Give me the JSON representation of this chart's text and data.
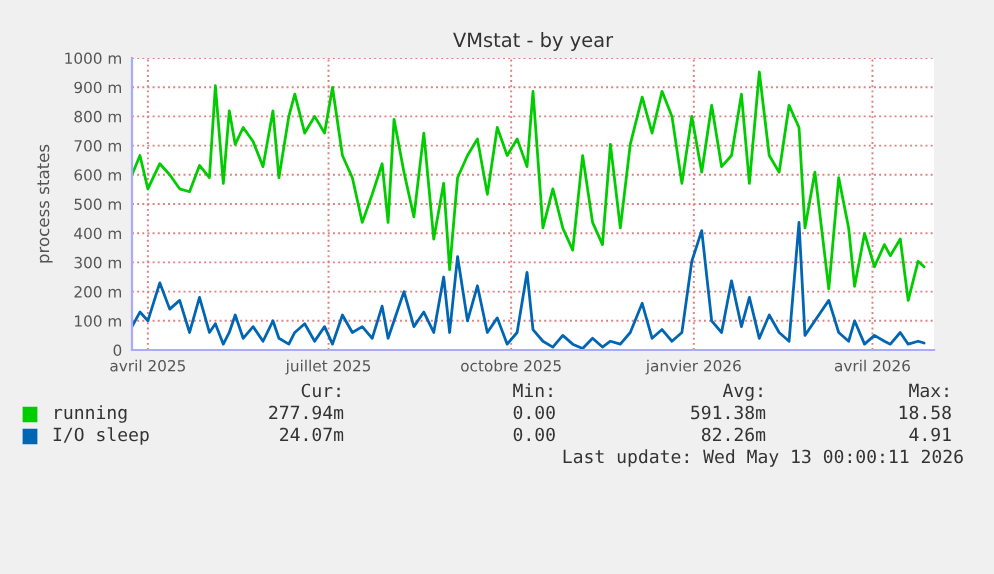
{
  "chart_data": {
    "type": "line",
    "title": "VMstat - by year",
    "ylabel": "process states",
    "x": [
      "2025-03-24",
      "2025-03-28",
      "2025-04-01",
      "2025-04-07",
      "2025-04-12",
      "2025-04-17",
      "2025-04-22",
      "2025-04-27",
      "2025-05-02",
      "2025-05-05",
      "2025-05-09",
      "2025-05-12",
      "2025-05-15",
      "2025-05-19",
      "2025-05-24",
      "2025-05-29",
      "2025-06-03",
      "2025-06-06",
      "2025-06-11",
      "2025-06-14",
      "2025-06-19",
      "2025-06-24",
      "2025-06-29",
      "2025-07-03",
      "2025-07-08",
      "2025-07-13",
      "2025-07-18",
      "2025-07-23",
      "2025-07-28",
      "2025-07-31",
      "2025-08-03",
      "2025-08-08",
      "2025-08-13",
      "2025-08-18",
      "2025-08-23",
      "2025-08-28",
      "2025-08-31",
      "2025-09-04",
      "2025-09-09",
      "2025-09-14",
      "2025-09-19",
      "2025-09-24",
      "2025-09-29",
      "2025-10-04",
      "2025-10-09",
      "2025-10-12",
      "2025-10-17",
      "2025-10-22",
      "2025-10-27",
      "2025-11-01",
      "2025-11-06",
      "2025-11-11",
      "2025-11-16",
      "2025-11-20",
      "2025-11-25",
      "2025-11-30",
      "2025-12-06",
      "2025-12-11",
      "2025-12-16",
      "2025-12-21",
      "2025-12-26",
      "2025-12-31",
      "2026-01-05",
      "2026-01-10",
      "2026-01-15",
      "2026-01-20",
      "2026-01-25",
      "2026-01-29",
      "2026-02-03",
      "2026-02-08",
      "2026-02-13",
      "2026-02-18",
      "2026-02-23",
      "2026-02-26",
      "2026-03-03",
      "2026-03-10",
      "2026-03-15",
      "2026-03-20",
      "2026-03-23",
      "2026-03-28",
      "2026-04-02",
      "2026-04-07",
      "2026-04-10",
      "2026-04-15",
      "2026-04-19",
      "2026-04-24",
      "2026-04-27"
    ],
    "series": [
      {
        "name": "running",
        "color": "#00cc00",
        "values": [
          600,
          666,
          552,
          638,
          600,
          552,
          542,
          632,
          590,
          905,
          571,
          819,
          704,
          762,
          714,
          628,
          819,
          590,
          800,
          876,
          743,
          800,
          743,
          899,
          666,
          590,
          437,
          533,
          638,
          437,
          790,
          609,
          456,
          743,
          380,
          571,
          275,
          590,
          666,
          723,
          533,
          762,
          666,
          723,
          628,
          886,
          418,
          552,
          418,
          342,
          666,
          437,
          361,
          704,
          418,
          704,
          866,
          743,
          886,
          800,
          571,
          800,
          609,
          838,
          628,
          666,
          876,
          571,
          952,
          666,
          609,
          838,
          762,
          418,
          609,
          209,
          590,
          418,
          218,
          399,
          285,
          361,
          323,
          380,
          170,
          304,
          285
        ]
      },
      {
        "name": "I/O sleep",
        "color": "#0066b3",
        "values": [
          80,
          130,
          100,
          230,
          140,
          170,
          60,
          180,
          60,
          90,
          20,
          60,
          120,
          40,
          80,
          30,
          100,
          40,
          20,
          60,
          90,
          30,
          80,
          20,
          120,
          60,
          80,
          40,
          150,
          40,
          100,
          200,
          80,
          130,
          60,
          250,
          60,
          320,
          100,
          220,
          60,
          110,
          20,
          60,
          266,
          70,
          30,
          10,
          50,
          20,
          5,
          40,
          10,
          30,
          20,
          60,
          160,
          40,
          70,
          30,
          60,
          304,
          409,
          100,
          60,
          237,
          80,
          180,
          40,
          120,
          60,
          30,
          437,
          50,
          100,
          170,
          60,
          30,
          100,
          20,
          50,
          30,
          20,
          60,
          20,
          30,
          24
        ]
      }
    ],
    "xlim": [
      "2025-03-24",
      "2026-05-02"
    ],
    "xticks": [
      {
        "value": "2025-04-01",
        "label": "avril 2025"
      },
      {
        "value": "2025-07-01",
        "label": "juillet 2025"
      },
      {
        "value": "2025-10-01",
        "label": "octobre 2025"
      },
      {
        "value": "2026-01-01",
        "label": "janvier 2026"
      },
      {
        "value": "2026-04-01",
        "label": "avril 2026"
      }
    ],
    "ylim": [
      0,
      1000
    ],
    "yticks": [
      0,
      {
        "value": 100,
        "label": "100 m"
      },
      {
        "value": 200,
        "label": "200 m"
      },
      {
        "value": 300,
        "label": "300 m"
      },
      {
        "value": 400,
        "label": "400 m"
      },
      {
        "value": 500,
        "label": "500 m"
      },
      {
        "value": 600,
        "label": "600 m"
      },
      {
        "value": 700,
        "label": "700 m"
      },
      {
        "value": 800,
        "label": "800 m"
      },
      {
        "value": 900,
        "label": "900 m"
      },
      {
        "value": 1000,
        "label": "1000 m"
      }
    ],
    "grid": true,
    "legend": "bottom",
    "marker": "none",
    "line_style": "solid",
    "annotations": [
      "Cur:",
      "Min:",
      "Avg:",
      "Max:",
      "277.94m",
      "0.00",
      "591.38m",
      "18.58",
      "24.07m",
      "0.00",
      "82.26m",
      "4.91",
      "Last update: Wed May 13 00:00:11 2026"
    ]
  }
}
